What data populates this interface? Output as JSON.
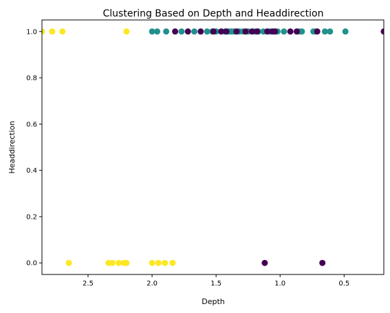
{
  "chart_data": {
    "type": "scatter",
    "title": "Clustering Based on Depth and Headdirection",
    "xlabel": "Depth",
    "ylabel": "Headdirection",
    "xlim": [
      2.86,
      0.19
    ],
    "ylim": [
      -0.05,
      1.05
    ],
    "x_reversed": true,
    "xticks": [
      "2.5",
      "2.0",
      "1.5",
      "1.0",
      "0.5"
    ],
    "xtick_values": [
      2.5,
      2.0,
      1.5,
      1.0,
      0.5
    ],
    "yticks": [
      "0.0",
      "0.2",
      "0.4",
      "0.6",
      "0.8",
      "1.0"
    ],
    "ytick_values": [
      0.0,
      0.2,
      0.4,
      0.6,
      0.8,
      1.0
    ],
    "grid": false,
    "legend": "none",
    "cluster_colors": [
      "#440154",
      "#21918c",
      "#fde725"
    ],
    "points": [
      {
        "x": 2.86,
        "y": 1,
        "c": 2
      },
      {
        "x": 2.78,
        "y": 1,
        "c": 2
      },
      {
        "x": 2.7,
        "y": 1,
        "c": 2
      },
      {
        "x": 2.2,
        "y": 1,
        "c": 2
      },
      {
        "x": 2.65,
        "y": 0,
        "c": 2
      },
      {
        "x": 2.34,
        "y": 0,
        "c": 2
      },
      {
        "x": 2.31,
        "y": 0,
        "c": 2
      },
      {
        "x": 2.26,
        "y": 0,
        "c": 2
      },
      {
        "x": 2.22,
        "y": 0,
        "c": 2
      },
      {
        "x": 2.2,
        "y": 0,
        "c": 2
      },
      {
        "x": 2.0,
        "y": 0,
        "c": 2
      },
      {
        "x": 1.95,
        "y": 0,
        "c": 2
      },
      {
        "x": 1.9,
        "y": 0,
        "c": 2
      },
      {
        "x": 1.84,
        "y": 0,
        "c": 2
      },
      {
        "x": 2.0,
        "y": 1,
        "c": 1
      },
      {
        "x": 1.96,
        "y": 1,
        "c": 1
      },
      {
        "x": 1.89,
        "y": 1,
        "c": 1
      },
      {
        "x": 1.77,
        "y": 1,
        "c": 1
      },
      {
        "x": 1.67,
        "y": 1,
        "c": 1
      },
      {
        "x": 1.57,
        "y": 1,
        "c": 1
      },
      {
        "x": 1.53,
        "y": 1,
        "c": 1
      },
      {
        "x": 1.5,
        "y": 1,
        "c": 1
      },
      {
        "x": 1.43,
        "y": 1,
        "c": 1
      },
      {
        "x": 1.4,
        "y": 1,
        "c": 1
      },
      {
        "x": 1.38,
        "y": 1,
        "c": 1
      },
      {
        "x": 1.36,
        "y": 1,
        "c": 1
      },
      {
        "x": 1.32,
        "y": 1,
        "c": 1
      },
      {
        "x": 1.29,
        "y": 1,
        "c": 1
      },
      {
        "x": 1.25,
        "y": 1,
        "c": 1
      },
      {
        "x": 1.2,
        "y": 1,
        "c": 1
      },
      {
        "x": 1.17,
        "y": 1,
        "c": 1
      },
      {
        "x": 1.13,
        "y": 1,
        "c": 1
      },
      {
        "x": 1.08,
        "y": 1,
        "c": 1
      },
      {
        "x": 1.04,
        "y": 1,
        "c": 1
      },
      {
        "x": 1.02,
        "y": 1,
        "c": 1
      },
      {
        "x": 0.97,
        "y": 1,
        "c": 1
      },
      {
        "x": 0.85,
        "y": 1,
        "c": 1
      },
      {
        "x": 0.83,
        "y": 1,
        "c": 1
      },
      {
        "x": 0.74,
        "y": 1,
        "c": 1
      },
      {
        "x": 0.72,
        "y": 1,
        "c": 1
      },
      {
        "x": 0.65,
        "y": 1,
        "c": 1
      },
      {
        "x": 0.61,
        "y": 1,
        "c": 1
      },
      {
        "x": 0.49,
        "y": 1,
        "c": 1
      },
      {
        "x": 1.82,
        "y": 1,
        "c": 0
      },
      {
        "x": 1.72,
        "y": 1,
        "c": 0
      },
      {
        "x": 1.62,
        "y": 1,
        "c": 0
      },
      {
        "x": 1.52,
        "y": 1,
        "c": 0
      },
      {
        "x": 1.46,
        "y": 1,
        "c": 0
      },
      {
        "x": 1.42,
        "y": 1,
        "c": 0
      },
      {
        "x": 1.34,
        "y": 1,
        "c": 0
      },
      {
        "x": 1.27,
        "y": 1,
        "c": 0
      },
      {
        "x": 1.22,
        "y": 1,
        "c": 0
      },
      {
        "x": 1.18,
        "y": 1,
        "c": 0
      },
      {
        "x": 1.1,
        "y": 1,
        "c": 0
      },
      {
        "x": 1.06,
        "y": 1,
        "c": 0
      },
      {
        "x": 1.04,
        "y": 1,
        "c": 0
      },
      {
        "x": 0.92,
        "y": 1,
        "c": 0
      },
      {
        "x": 0.87,
        "y": 1,
        "c": 0
      },
      {
        "x": 0.71,
        "y": 1,
        "c": 0
      },
      {
        "x": 0.19,
        "y": 1,
        "c": 0
      },
      {
        "x": 1.12,
        "y": 0,
        "c": 0
      },
      {
        "x": 0.67,
        "y": 0,
        "c": 0
      }
    ]
  }
}
